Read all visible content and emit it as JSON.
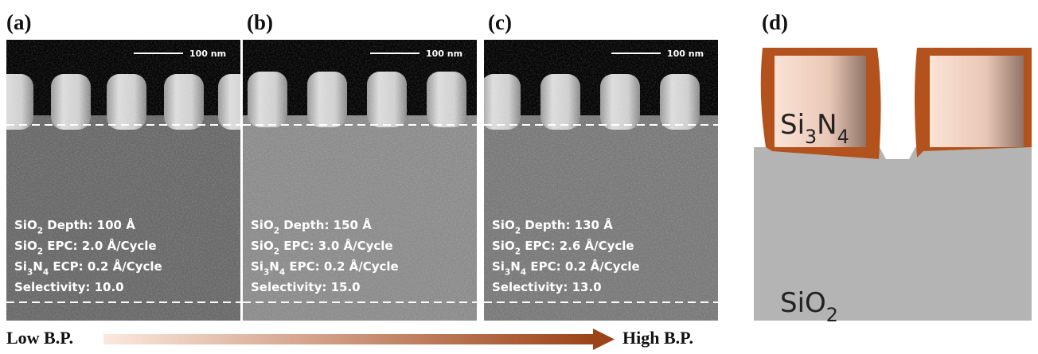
{
  "panels": [
    {
      "label": "(a)",
      "scale_bar": "100 nm",
      "lines": [
        [
          "SiO",
          "2",
          " Depth: 100 Å"
        ],
        [
          "SiO",
          "2",
          " EPC: 2.0 Å/Cycle"
        ],
        [
          "Si",
          "3",
          "N",
          "4",
          " ECP: 0.2 Å/Cycle"
        ],
        [
          "Selectivity: 10.0"
        ]
      ]
    },
    {
      "label": "(b)",
      "scale_bar": "100 nm",
      "lines": [
        [
          "SiO",
          "2",
          " Depth: 150 Å"
        ],
        [
          "SiO",
          "2",
          " EPC: 3.0 Å/Cycle"
        ],
        [
          "Si",
          "3",
          "N",
          "4",
          " EPC: 0.2 Å/Cycle"
        ],
        [
          "Selectivity: 15.0"
        ]
      ]
    },
    {
      "label": "(c)",
      "scale_bar": "100 nm",
      "lines": [
        [
          "SiO",
          "2",
          " Depth: 130 Å"
        ],
        [
          "SiO",
          "2",
          " EPC: 2.6 Å/Cycle"
        ],
        [
          "Si",
          "3",
          "N",
          "4",
          " EPC: 0.2 Å/Cycle"
        ],
        [
          "Selectivity: 13.0"
        ]
      ]
    }
  ],
  "diagram": {
    "label": "(d)",
    "top_material": [
      "Si",
      "3",
      "N",
      "4"
    ],
    "bottom_material": [
      "SiO",
      "2"
    ]
  },
  "arrow": {
    "start": "Low B.P.",
    "end": "High B.P."
  }
}
